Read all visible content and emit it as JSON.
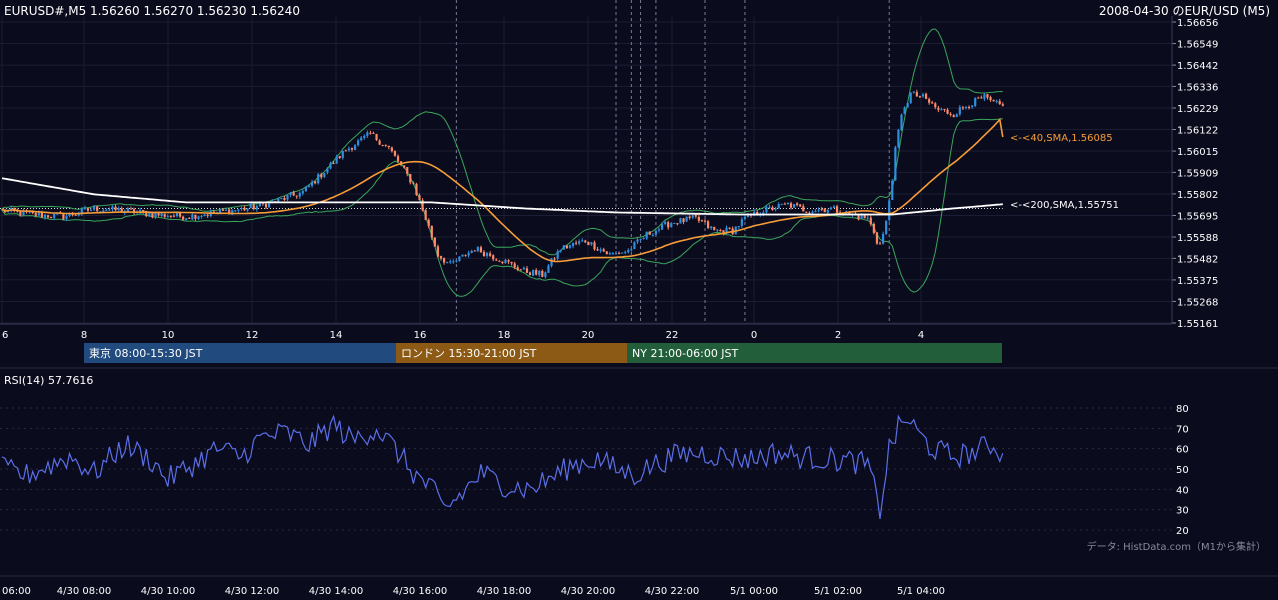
{
  "header": {
    "symbol_info": "EURUSD#,M5 1.56260 1.56270 1.56230 1.56240",
    "title": "2008-04-30 のEUR/USD (M5)"
  },
  "chart_data": [
    {
      "type": "candlestick",
      "name": "price",
      "ylim": [
        1.55161,
        1.56656
      ],
      "y_ticks": [
        "1.56656",
        "1.56549",
        "1.56442",
        "1.56336",
        "1.56229",
        "1.56122",
        "1.56015",
        "1.55909",
        "1.55802",
        "1.55695",
        "1.55588",
        "1.55482",
        "1.55375",
        "1.55268",
        "1.55161"
      ],
      "x_ticks": [
        "6",
        "8",
        "10",
        "12",
        "14",
        "16",
        "18",
        "20",
        "22",
        "0",
        "2",
        "4"
      ],
      "anchors": {
        "close": [
          [
            0,
            1.5572
          ],
          [
            10,
            1.557
          ],
          [
            20,
            1.5569
          ],
          [
            30,
            1.5573
          ],
          [
            40,
            1.5572
          ],
          [
            50,
            1.557
          ],
          [
            60,
            1.5569
          ],
          [
            70,
            1.5571
          ],
          [
            80,
            1.5573
          ],
          [
            88,
            1.5576
          ],
          [
            98,
            1.5581
          ],
          [
            104,
            1.559
          ],
          [
            112,
            1.5602
          ],
          [
            120,
            1.561
          ],
          [
            126,
            1.5603
          ],
          [
            134,
            1.5585
          ],
          [
            138,
            1.5568
          ],
          [
            142,
            1.555
          ],
          [
            146,
            1.5545
          ],
          [
            154,
            1.5553
          ],
          [
            162,
            1.5548
          ],
          [
            170,
            1.5542
          ],
          [
            176,
            1.554
          ],
          [
            182,
            1.5553
          ],
          [
            190,
            1.5557
          ],
          [
            198,
            1.555
          ],
          [
            204,
            1.5552
          ],
          [
            210,
            1.556
          ],
          [
            218,
            1.5566
          ],
          [
            226,
            1.5568
          ],
          [
            232,
            1.5562
          ],
          [
            238,
            1.5562
          ],
          [
            242,
            1.5568
          ],
          [
            248,
            1.5572
          ],
          [
            256,
            1.5575
          ],
          [
            262,
            1.5572
          ],
          [
            270,
            1.5573
          ],
          [
            276,
            1.557
          ],
          [
            282,
            1.5568
          ],
          [
            286,
            1.5555
          ],
          [
            288,
            1.5565
          ],
          [
            290,
            1.559
          ],
          [
            292,
            1.561
          ],
          [
            294,
            1.5625
          ],
          [
            296,
            1.563
          ],
          [
            300,
            1.5628
          ],
          [
            305,
            1.5622
          ],
          [
            310,
            1.562
          ],
          [
            315,
            1.5625
          ],
          [
            320,
            1.5628
          ],
          [
            323,
            1.5625
          ],
          [
            326,
            1.5624
          ]
        ]
      },
      "sma40": {
        "label": "<-<40,SMA,1.56085",
        "color": "#f79d38",
        "last": 1.56085
      },
      "sma200": {
        "label": "<-<200,SMA,1.55751",
        "color": "#ffffff",
        "last": 1.55751
      },
      "bollinger": {
        "color": "#3aa65a"
      },
      "colors": {
        "up": "#2e8fe0",
        "down": "#ff8a66",
        "dotted_line": "#ffffff"
      },
      "reference_level": 1.5573,
      "vertical_dashed_lines_at_candle": [
        148,
        200,
        205,
        208,
        213,
        229,
        242,
        289
      ],
      "grid": true
    },
    {
      "type": "line",
      "name": "RSI(14)",
      "label": "RSI(14) 57.7616",
      "ylim": [
        20,
        80
      ],
      "y_ticks": [
        "80",
        "70",
        "60",
        "50",
        "40",
        "30",
        "20"
      ],
      "series_color": "#5b6fe8",
      "anchors": [
        [
          0,
          50
        ],
        [
          8,
          47
        ],
        [
          16,
          52
        ],
        [
          22,
          56
        ],
        [
          30,
          48
        ],
        [
          40,
          62
        ],
        [
          48,
          55
        ],
        [
          54,
          45
        ],
        [
          62,
          52
        ],
        [
          70,
          60
        ],
        [
          78,
          56
        ],
        [
          84,
          65
        ],
        [
          92,
          68
        ],
        [
          100,
          62
        ],
        [
          108,
          72
        ],
        [
          114,
          64
        ],
        [
          122,
          70
        ],
        [
          128,
          60
        ],
        [
          134,
          48
        ],
        [
          140,
          40
        ],
        [
          144,
          30
        ],
        [
          150,
          38
        ],
        [
          156,
          48
        ],
        [
          164,
          42
        ],
        [
          172,
          40
        ],
        [
          178,
          45
        ],
        [
          186,
          52
        ],
        [
          194,
          55
        ],
        [
          200,
          50
        ],
        [
          206,
          47
        ],
        [
          212,
          52
        ],
        [
          220,
          57
        ],
        [
          228,
          58
        ],
        [
          236,
          56
        ],
        [
          244,
          55
        ],
        [
          252,
          58
        ],
        [
          260,
          56
        ],
        [
          268,
          55
        ],
        [
          276,
          54
        ],
        [
          282,
          52
        ],
        [
          286,
          30
        ],
        [
          289,
          60
        ],
        [
          292,
          70
        ],
        [
          295,
          75
        ],
        [
          298,
          68
        ],
        [
          303,
          60
        ],
        [
          310,
          56
        ],
        [
          316,
          58
        ],
        [
          322,
          62
        ],
        [
          326,
          58
        ]
      ],
      "last": 57.7616
    }
  ],
  "sessions": [
    {
      "label": "東京 08:00-15:30 JST",
      "color": "#214a7e"
    },
    {
      "label": "ロンドン 15:30-21:00 JST",
      "color": "#8c5a14"
    },
    {
      "label": "NY 21:00-06:00 JST",
      "color": "#235e3a"
    }
  ],
  "time_axis": [
    "06:00",
    "4/30 08:00",
    "4/30 10:00",
    "4/30 12:00",
    "4/30 14:00",
    "4/30 16:00",
    "4/30 18:00",
    "4/30 20:00",
    "4/30 22:00",
    "5/1 00:00",
    "5/1 02:00",
    "5/1 04:00"
  ],
  "source_note": "データ: HistData.com（M1から集計）"
}
